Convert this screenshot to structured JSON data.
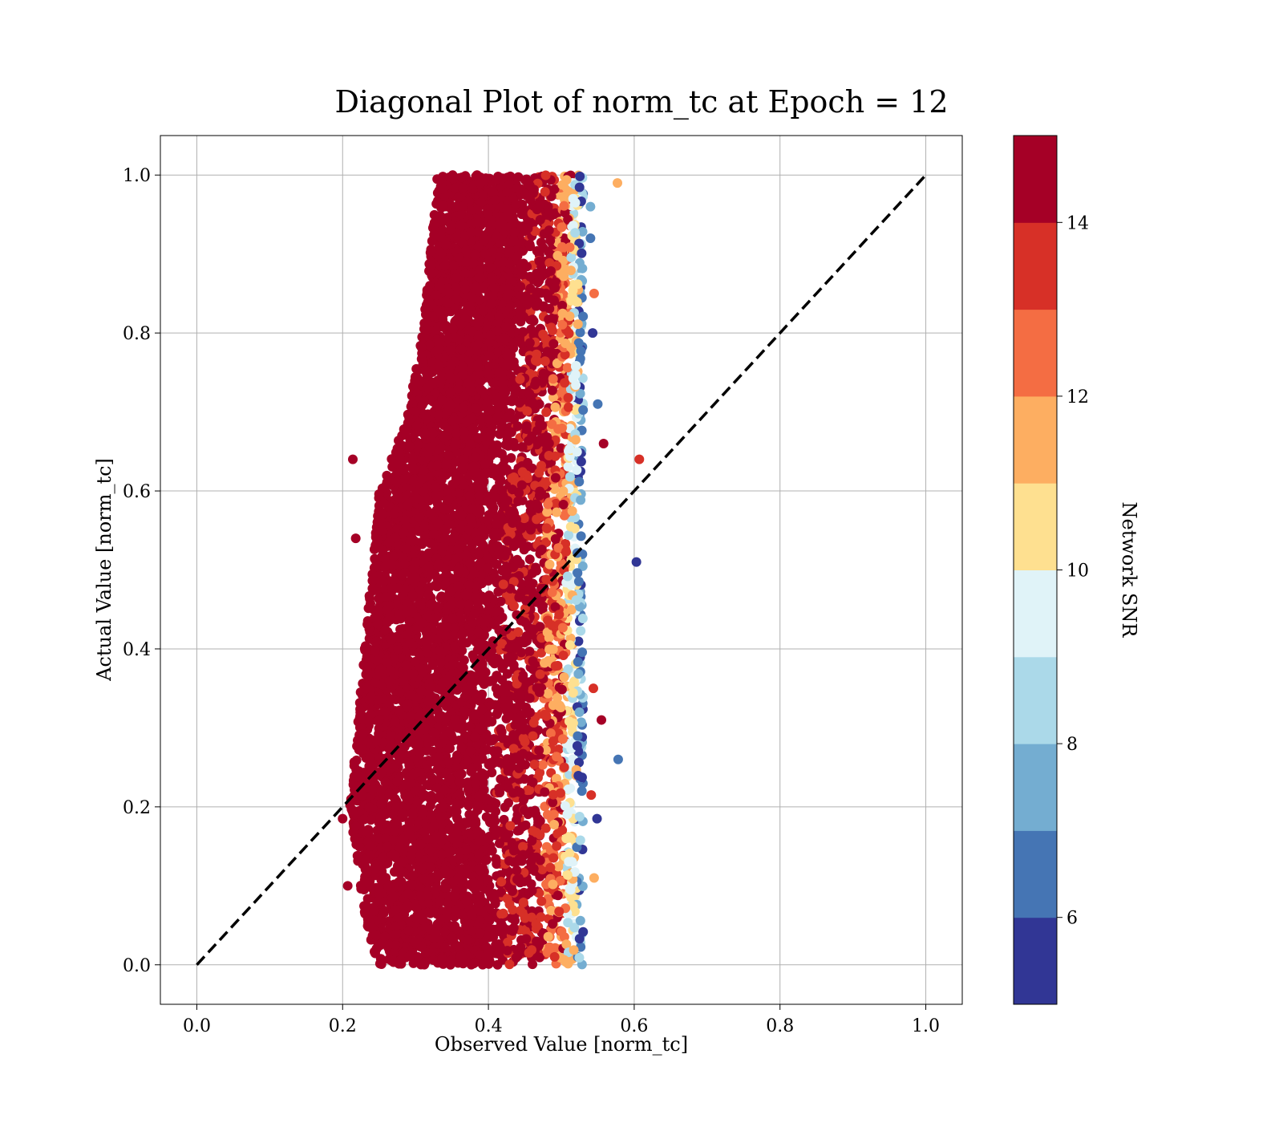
{
  "chart_data": {
    "type": "scatter",
    "title": "Diagonal Plot of norm_tc at Epoch = 12",
    "xlabel": "Observed Value [norm_tc]",
    "ylabel": "Actual Value [norm_tc]",
    "xlim": [
      -0.05,
      1.05
    ],
    "ylim": [
      -0.05,
      1.05
    ],
    "x_ticks": [
      "0.0",
      "0.2",
      "0.4",
      "0.6",
      "0.8",
      "1.0"
    ],
    "y_ticks": [
      "0.0",
      "0.2",
      "0.4",
      "0.6",
      "0.8",
      "1.0"
    ],
    "grid": true,
    "reference_line": {
      "style": "dashed",
      "color": "#000000",
      "from": [
        0,
        0
      ],
      "to": [
        1,
        1
      ]
    },
    "colorbar": {
      "label": "Network SNR",
      "range": [
        5,
        15
      ],
      "ticks": [
        "6",
        "8",
        "10",
        "12",
        "14"
      ],
      "colors": [
        "#313695",
        "#4575b4",
        "#74add1",
        "#abd9e9",
        "#e0f3f8",
        "#fee090",
        "#fdae61",
        "#f46d43",
        "#d73027",
        "#a50026"
      ]
    },
    "cloud_envelope": [
      {
        "y": 0.0,
        "xmin": 0.25,
        "xmax": 0.53
      },
      {
        "y": 0.05,
        "xmin": 0.23,
        "xmax": 0.53
      },
      {
        "y": 0.2,
        "xmin": 0.21,
        "xmax": 0.53
      },
      {
        "y": 0.3,
        "xmin": 0.22,
        "xmax": 0.53
      },
      {
        "y": 0.4,
        "xmin": 0.23,
        "xmax": 0.53
      },
      {
        "y": 0.5,
        "xmin": 0.24,
        "xmax": 0.53
      },
      {
        "y": 0.6,
        "xmin": 0.25,
        "xmax": 0.53
      },
      {
        "y": 0.7,
        "xmin": 0.29,
        "xmax": 0.53
      },
      {
        "y": 0.8,
        "xmin": 0.31,
        "xmax": 0.53
      },
      {
        "y": 0.9,
        "xmin": 0.32,
        "xmax": 0.53
      },
      {
        "y": 1.0,
        "xmin": 0.33,
        "xmax": 0.53
      }
    ],
    "outliers": [
      {
        "x": 0.577,
        "y": 0.99,
        "snr": 11.0
      },
      {
        "x": 0.55,
        "y": 0.71,
        "snr": 6.5
      },
      {
        "x": 0.558,
        "y": 0.66,
        "snr": 14.8
      },
      {
        "x": 0.607,
        "y": 0.64,
        "snr": 13.5
      },
      {
        "x": 0.603,
        "y": 0.51,
        "snr": 5.5
      },
      {
        "x": 0.544,
        "y": 0.35,
        "snr": 13.5
      },
      {
        "x": 0.555,
        "y": 0.31,
        "snr": 14.8
      },
      {
        "x": 0.578,
        "y": 0.26,
        "snr": 6.5
      },
      {
        "x": 0.541,
        "y": 0.215,
        "snr": 13.5
      },
      {
        "x": 0.549,
        "y": 0.185,
        "snr": 5.5
      },
      {
        "x": 0.545,
        "y": 0.11,
        "snr": 11.5
      },
      {
        "x": 0.54,
        "y": 0.96,
        "snr": 7.0
      },
      {
        "x": 0.54,
        "y": 0.92,
        "snr": 6.0
      },
      {
        "x": 0.545,
        "y": 0.85,
        "snr": 12.5
      },
      {
        "x": 0.543,
        "y": 0.8,
        "snr": 5.5
      },
      {
        "x": 0.2,
        "y": 0.185,
        "snr": 14.8
      },
      {
        "x": 0.207,
        "y": 0.1,
        "snr": 14.8
      },
      {
        "x": 0.214,
        "y": 0.64,
        "snr": 14.8
      },
      {
        "x": 0.218,
        "y": 0.54,
        "snr": 14.8
      }
    ]
  }
}
